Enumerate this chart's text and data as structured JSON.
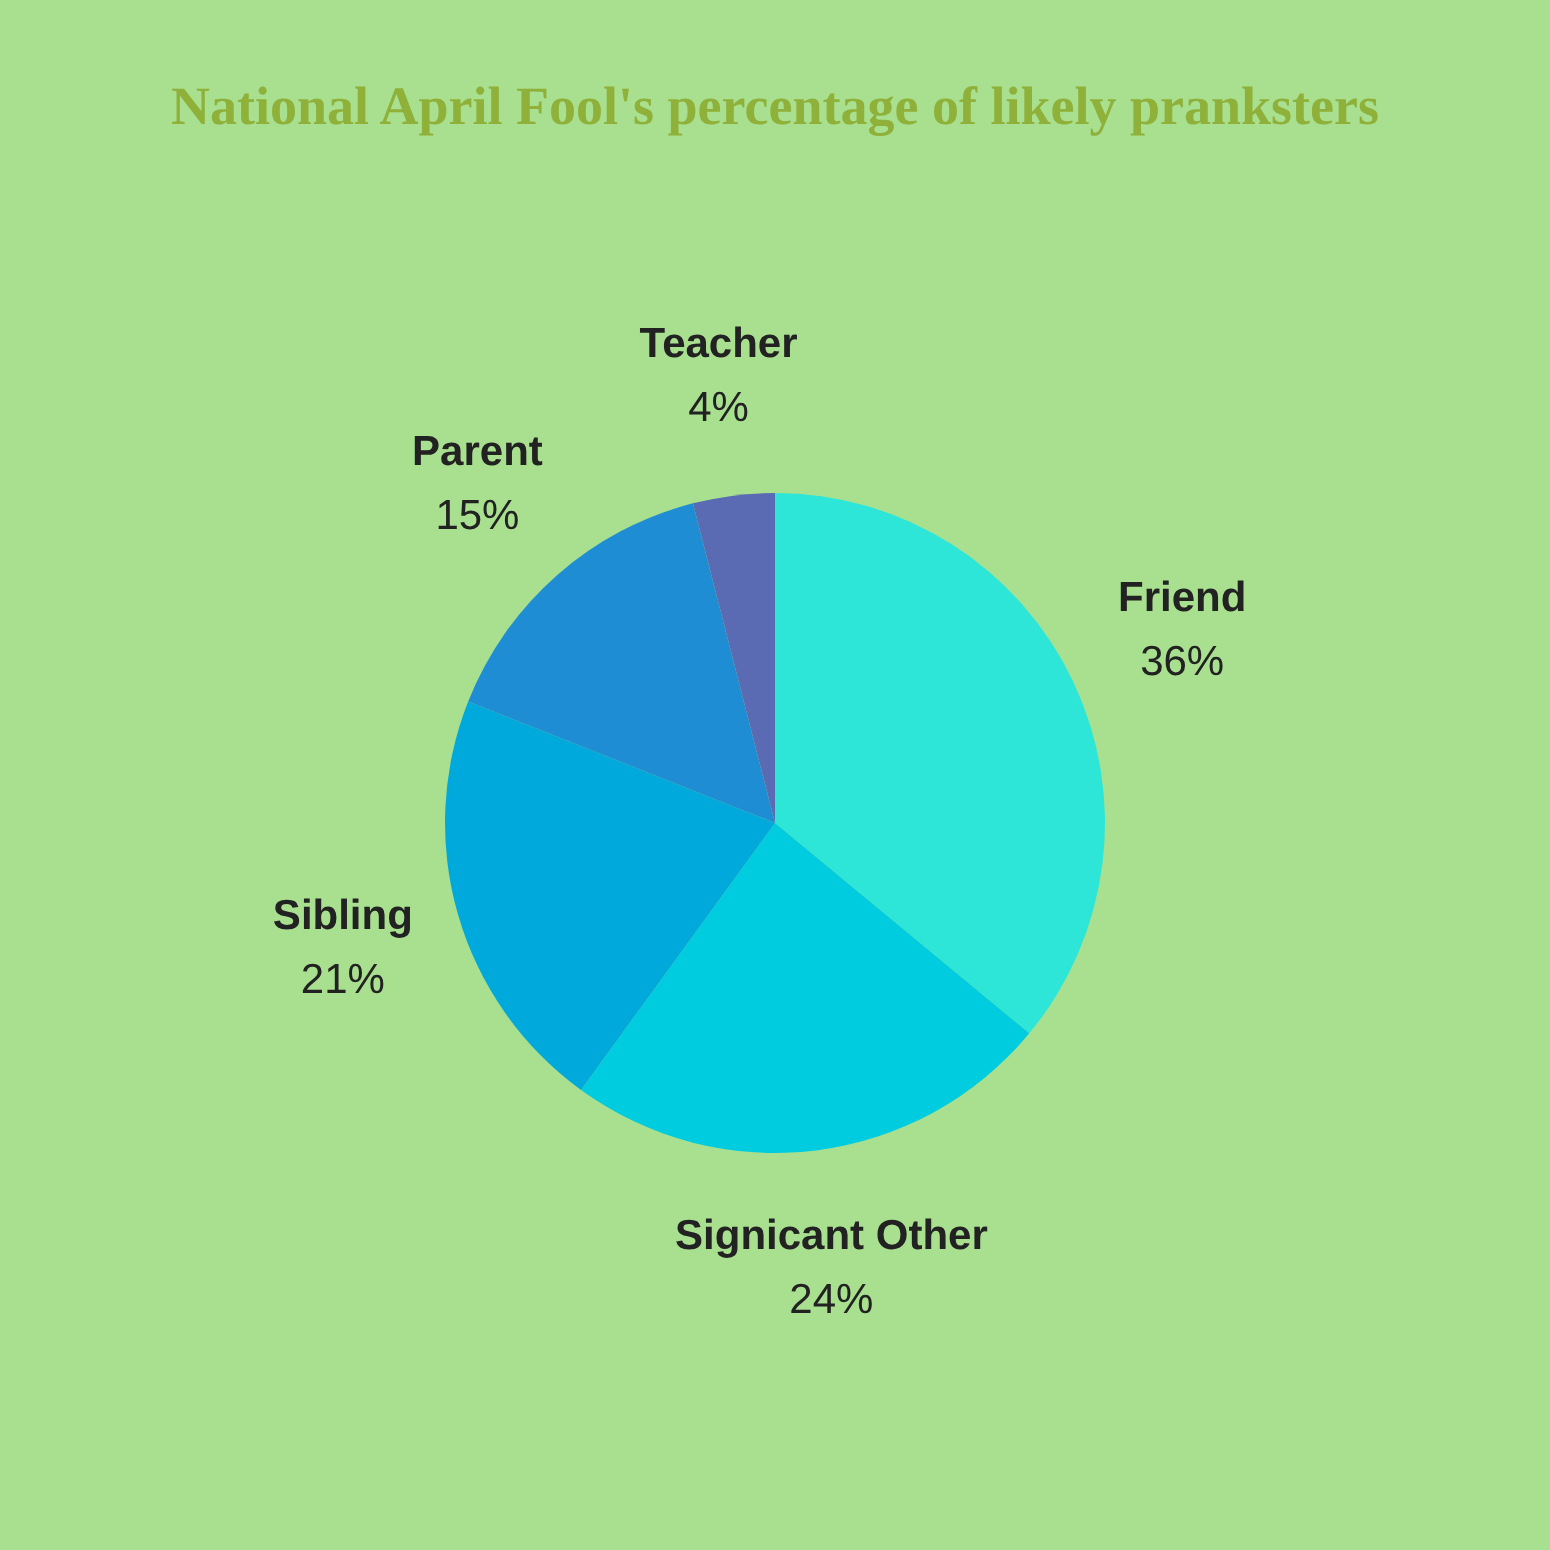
{
  "chart_data": {
    "type": "pie",
    "title": "National April Fool's percentage of likely pranksters",
    "categories": [
      "Friend",
      "Signicant Other",
      "Sibling",
      "Parent",
      "Teacher"
    ],
    "values": [
      36,
      24,
      21,
      15,
      4
    ],
    "value_labels": [
      "36%",
      "24%",
      "21%",
      "15%",
      "4%"
    ],
    "colors": [
      "#2ee6d8",
      "#00cce0",
      "#00a9dc",
      "#1e8dd3",
      "#5a6bb3"
    ],
    "legend": false
  }
}
